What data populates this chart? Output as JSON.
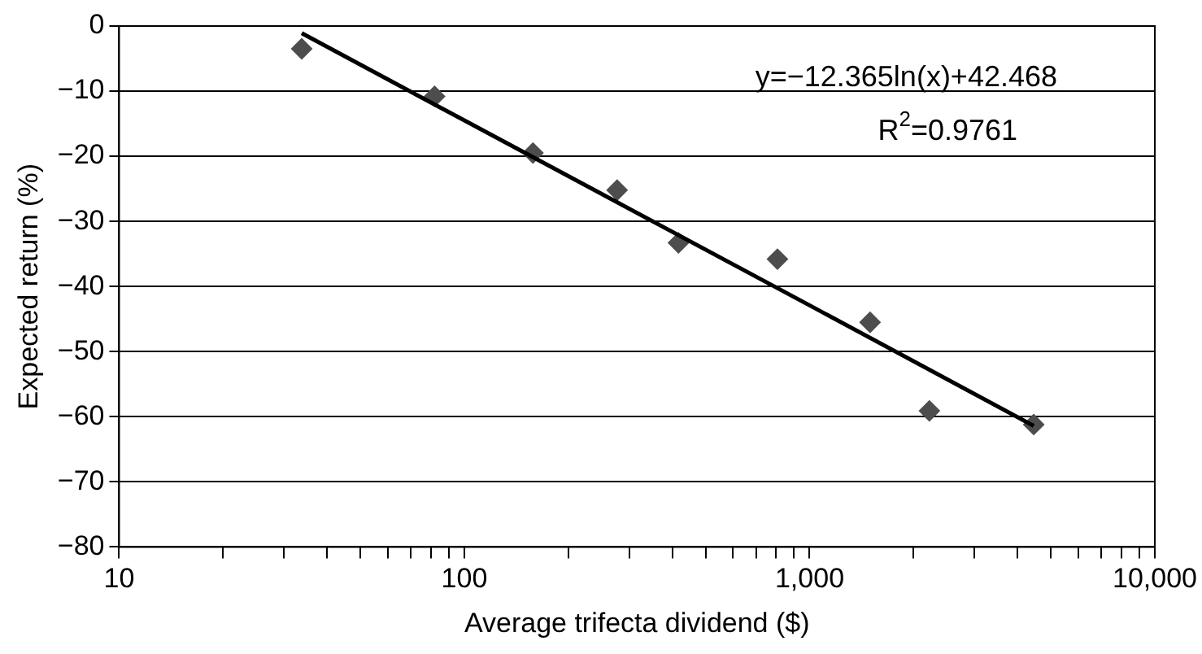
{
  "chart_data": {
    "type": "scatter",
    "xlabel": "Average trifecta dividend ($)",
    "ylabel": "Expected return (%)",
    "log": "x",
    "grid": "y",
    "marker": "diamond",
    "legend": false,
    "xlim": [
      10,
      10000
    ],
    "ylim": [
      -80,
      0
    ],
    "xticks": [
      10,
      {
        "value": 20,
        "label": null
      },
      {
        "value": 30,
        "label": null
      },
      {
        "value": 40,
        "label": null
      },
      {
        "value": 50,
        "label": null
      },
      {
        "value": 60,
        "label": null
      },
      {
        "value": 70,
        "label": null
      },
      {
        "value": 80,
        "label": null
      },
      {
        "value": 90,
        "label": null
      },
      100,
      {
        "value": 200,
        "label": null
      },
      {
        "value": 300,
        "label": null
      },
      {
        "value": 400,
        "label": null
      },
      {
        "value": 500,
        "label": null
      },
      {
        "value": 600,
        "label": null
      },
      {
        "value": 700,
        "label": null
      },
      {
        "value": 800,
        "label": null
      },
      {
        "value": 900,
        "label": null
      },
      {
        "value": 1000,
        "label": "1,000"
      },
      {
        "value": 2000,
        "label": null
      },
      {
        "value": 3000,
        "label": null
      },
      {
        "value": 4000,
        "label": null
      },
      {
        "value": 5000,
        "label": null
      },
      {
        "value": 6000,
        "label": null
      },
      {
        "value": 7000,
        "label": null
      },
      {
        "value": 8000,
        "label": null
      },
      {
        "value": 9000,
        "label": null
      },
      {
        "value": 10000,
        "label": "10,000"
      }
    ],
    "yticks": [
      {
        "value": -80,
        "label": "−80"
      },
      {
        "value": -70,
        "label": "−70"
      },
      {
        "value": -60,
        "label": "−60"
      },
      {
        "value": -50,
        "label": "−50"
      },
      {
        "value": -40,
        "label": "−40"
      },
      {
        "value": -30,
        "label": "−30"
      },
      {
        "value": -20,
        "label": "−20"
      },
      {
        "value": -10,
        "label": "−10"
      },
      0
    ],
    "series": [
      {
        "type": "scatter",
        "color": "#4d4d4d",
        "x": [
          33.8,
          82,
          158,
          277,
          417,
          807,
          1497,
          2223,
          4459
        ],
        "values": [
          -3.5,
          -10.8,
          -19.5,
          -25.2,
          -33.3,
          -35.8,
          -45.5,
          -59.1,
          -61.2
        ]
      },
      {
        "type": "line",
        "color": "#000000",
        "marker": "none",
        "x": [
          33.8,
          100,
          1000,
          4459
        ],
        "values": [
          -1.1,
          -14.5,
          -42.9,
          -61.4
        ]
      }
    ],
    "annotations": [
      "y=−12.365ln(x)+42.468",
      "R$^{2}$=0.9761"
    ]
  }
}
